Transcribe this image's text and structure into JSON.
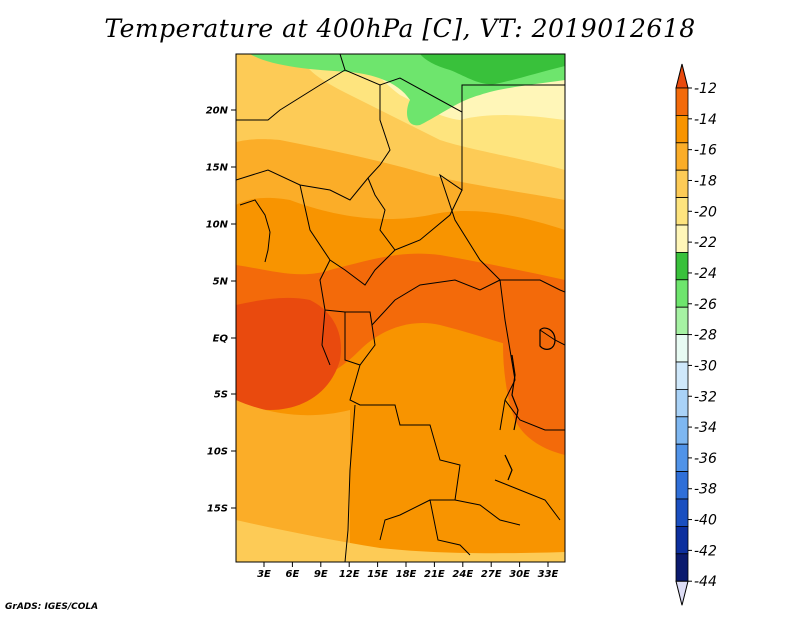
{
  "title": "Temperature at 400hPa [C], VT: 2019012618",
  "credit": "GrADS: IGES/COLA",
  "lat_ticks": [
    "20N",
    "15N",
    "10N",
    "5N",
    "EQ",
    "5S",
    "10S",
    "15S"
  ],
  "lon_ticks": [
    "3E",
    "6E",
    "9E",
    "12E",
    "15E",
    "18E",
    "21E",
    "24E",
    "27E",
    "30E",
    "33E"
  ],
  "colorbar": {
    "labels": [
      "-12",
      "-14",
      "-16",
      "-18",
      "-20",
      "-22",
      "-24",
      "-26",
      "-28",
      "-30",
      "-32",
      "-34",
      "-36",
      "-38",
      "-40",
      "-42",
      "-44"
    ],
    "colors": [
      "#e94a0e",
      "#f36a0a",
      "#f89400",
      "#fbad28",
      "#fdcb56",
      "#fee47e",
      "#fff6b8",
      "#39c13b",
      "#6ee56d",
      "#a6f2a3",
      "#e8fbf3",
      "#cfe8fb",
      "#a9d2f7",
      "#7eb7f1",
      "#5093e8",
      "#2f6fd8",
      "#1a4fc0",
      "#0c2f9e",
      "#0a1a6e"
    ],
    "low_arrow": "#ddddf5"
  }
}
